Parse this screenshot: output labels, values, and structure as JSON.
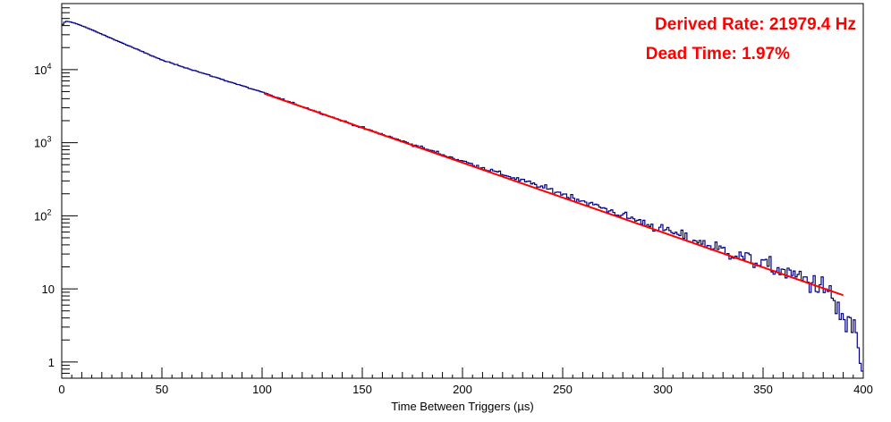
{
  "chart_data": {
    "type": "line",
    "xlabel": "Time Between Triggers (µs)",
    "ylabel": "",
    "title": "",
    "log_y": true,
    "xlim": [
      0,
      400
    ],
    "ylim": [
      0.6,
      80000
    ],
    "x_ticks": [
      0,
      50,
      100,
      150,
      200,
      250,
      300,
      350,
      400
    ],
    "x_tick_labels": [
      "0",
      "50",
      "100",
      "150",
      "200",
      "250",
      "300",
      "350",
      "400"
    ],
    "y_ticks": [
      1,
      10,
      100,
      1000,
      10000
    ],
    "y_tick_labels": [
      {
        "base": "1",
        "exp": ""
      },
      {
        "base": "10",
        "exp": ""
      },
      {
        "base": "10",
        "exp": "2"
      },
      {
        "base": "10",
        "exp": "3"
      },
      {
        "base": "10",
        "exp": "4"
      }
    ],
    "grid": false,
    "series": [
      {
        "kind": "histogram",
        "color": "#000080",
        "bin_width": 1,
        "points": [
          [
            0,
            40000
          ],
          [
            2,
            46000
          ],
          [
            5,
            44500
          ],
          [
            10,
            40000
          ],
          [
            50,
            13500
          ],
          [
            100,
            4900
          ],
          [
            150,
            1600
          ],
          [
            200,
            560
          ],
          [
            250,
            200
          ],
          [
            300,
            65
          ],
          [
            350,
            22
          ],
          [
            380,
            11
          ],
          [
            397,
            2
          ],
          [
            399,
            0.75
          ]
        ]
      },
      {
        "kind": "fit",
        "color": "#ff0000",
        "x_range": [
          101,
          390
        ],
        "y_at_100": 4800,
        "rate_hz": 21979.4
      }
    ],
    "annotations": [
      "Derived Rate: 21979.4 Hz",
      "Dead Time: 1.97%"
    ],
    "annotation_color": "#ff0000"
  }
}
